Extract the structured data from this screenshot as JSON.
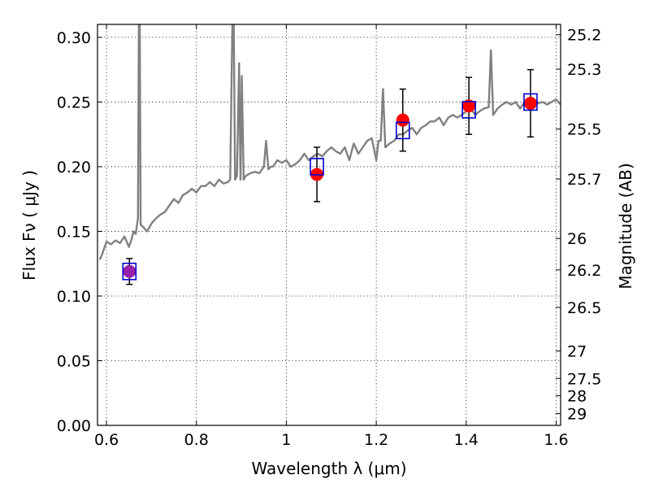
{
  "chart_data": {
    "type": "scatter",
    "title": "",
    "xlabel": "Wavelength  λ (μm)",
    "ylabel": "Flux  Fν  ( μJy )",
    "ylabel_right": "Magnitude (AB)",
    "xlim": [
      0.58,
      1.61
    ],
    "ylim": [
      0.0,
      0.31
    ],
    "grid": true,
    "legend": "none",
    "x_ticks": [
      {
        "value": 0.6,
        "label": "0.6"
      },
      {
        "value": 0.8,
        "label": "0.8"
      },
      {
        "value": 1.0,
        "label": "1"
      },
      {
        "value": 1.2,
        "label": "1.2"
      },
      {
        "value": 1.4,
        "label": "1.4"
      },
      {
        "value": 1.6,
        "label": "1.6"
      }
    ],
    "y_ticks": [
      {
        "value": 0.0,
        "label": "0.00"
      },
      {
        "value": 0.05,
        "label": "0.05"
      },
      {
        "value": 0.1,
        "label": "0.10"
      },
      {
        "value": 0.15,
        "label": "0.15"
      },
      {
        "value": 0.2,
        "label": "0.20"
      },
      {
        "value": 0.25,
        "label": "0.25"
      },
      {
        "value": 0.3,
        "label": "0.30"
      }
    ],
    "right_ticks": [
      {
        "flux": 0.302,
        "label": "25.2"
      },
      {
        "flux": 0.2754,
        "label": "25.3"
      },
      {
        "flux": 0.2291,
        "label": "25.5"
      },
      {
        "flux": 0.1905,
        "label": "25.7"
      },
      {
        "flux": 0.1445,
        "label": "26"
      },
      {
        "flux": 0.1202,
        "label": "26.2"
      },
      {
        "flux": 0.0912,
        "label": "26.5"
      },
      {
        "flux": 0.0575,
        "label": "27"
      },
      {
        "flux": 0.0363,
        "label": "27.5"
      },
      {
        "flux": 0.0229,
        "label": "28"
      },
      {
        "flux": 0.0091,
        "label": "29"
      }
    ],
    "colors": {
      "spectrum": "#808080",
      "observed": "#ff0000",
      "model_box": "#0000cc",
      "blend": "#9922aa",
      "errorbar": "#000000"
    },
    "series": [
      {
        "kind": "model_spectrum",
        "x": [
          0.585,
          0.59,
          0.6,
          0.61,
          0.62,
          0.63,
          0.64,
          0.65,
          0.655,
          0.66,
          0.665,
          0.67,
          0.672,
          0.674,
          0.676,
          0.68,
          0.69,
          0.7,
          0.71,
          0.72,
          0.73,
          0.74,
          0.75,
          0.76,
          0.77,
          0.78,
          0.79,
          0.8,
          0.81,
          0.82,
          0.83,
          0.84,
          0.85,
          0.86,
          0.87,
          0.875,
          0.88,
          0.883,
          0.886,
          0.89,
          0.895,
          0.898,
          0.901,
          0.905,
          0.91,
          0.92,
          0.93,
          0.94,
          0.95,
          0.955,
          0.96,
          0.965,
          0.97,
          0.98,
          0.99,
          1.0,
          1.01,
          1.02,
          1.03,
          1.04,
          1.05,
          1.06,
          1.07,
          1.08,
          1.09,
          1.1,
          1.11,
          1.12,
          1.13,
          1.14,
          1.15,
          1.16,
          1.17,
          1.18,
          1.19,
          1.2,
          1.205,
          1.21,
          1.215,
          1.22,
          1.23,
          1.24,
          1.25,
          1.26,
          1.27,
          1.28,
          1.29,
          1.3,
          1.31,
          1.32,
          1.33,
          1.34,
          1.35,
          1.36,
          1.37,
          1.38,
          1.39,
          1.4,
          1.41,
          1.42,
          1.43,
          1.44,
          1.45,
          1.455,
          1.46,
          1.47,
          1.48,
          1.49,
          1.5,
          1.51,
          1.52,
          1.53,
          1.54,
          1.55,
          1.56,
          1.57,
          1.58,
          1.59,
          1.6,
          1.61
        ],
        "y": [
          0.128,
          0.132,
          0.142,
          0.14,
          0.143,
          0.141,
          0.146,
          0.138,
          0.143,
          0.15,
          0.148,
          0.16,
          0.31,
          0.31,
          0.155,
          0.154,
          0.15,
          0.156,
          0.16,
          0.163,
          0.165,
          0.17,
          0.175,
          0.172,
          0.178,
          0.18,
          0.183,
          0.18,
          0.185,
          0.185,
          0.188,
          0.185,
          0.19,
          0.187,
          0.188,
          0.19,
          0.31,
          0.31,
          0.19,
          0.193,
          0.28,
          0.19,
          0.27,
          0.19,
          0.193,
          0.195,
          0.196,
          0.195,
          0.2,
          0.22,
          0.198,
          0.2,
          0.2,
          0.205,
          0.203,
          0.205,
          0.2,
          0.202,
          0.205,
          0.21,
          0.205,
          0.208,
          0.21,
          0.208,
          0.212,
          0.215,
          0.212,
          0.21,
          0.215,
          0.205,
          0.218,
          0.21,
          0.215,
          0.22,
          0.222,
          0.205,
          0.22,
          0.22,
          0.26,
          0.215,
          0.218,
          0.22,
          0.225,
          0.225,
          0.228,
          0.23,
          0.225,
          0.23,
          0.232,
          0.235,
          0.235,
          0.238,
          0.232,
          0.238,
          0.24,
          0.238,
          0.24,
          0.243,
          0.245,
          0.24,
          0.243,
          0.245,
          0.246,
          0.29,
          0.24,
          0.245,
          0.248,
          0.25,
          0.248,
          0.25,
          0.245,
          0.25,
          0.248,
          0.25,
          0.249,
          0.25,
          0.248,
          0.25,
          0.252,
          0.248
        ]
      },
      {
        "kind": "model_photometry",
        "x": [
          0.651,
          1.068,
          1.259,
          1.406,
          1.543
        ],
        "y": [
          0.119,
          0.2,
          0.228,
          0.244,
          0.25
        ]
      },
      {
        "kind": "observed",
        "x": [
          0.651,
          1.068,
          1.259,
          1.406,
          1.543
        ],
        "y": [
          0.119,
          0.194,
          0.236,
          0.247,
          0.249
        ],
        "yerr": [
          0.01,
          0.021,
          0.024,
          0.022,
          0.026
        ]
      }
    ]
  }
}
